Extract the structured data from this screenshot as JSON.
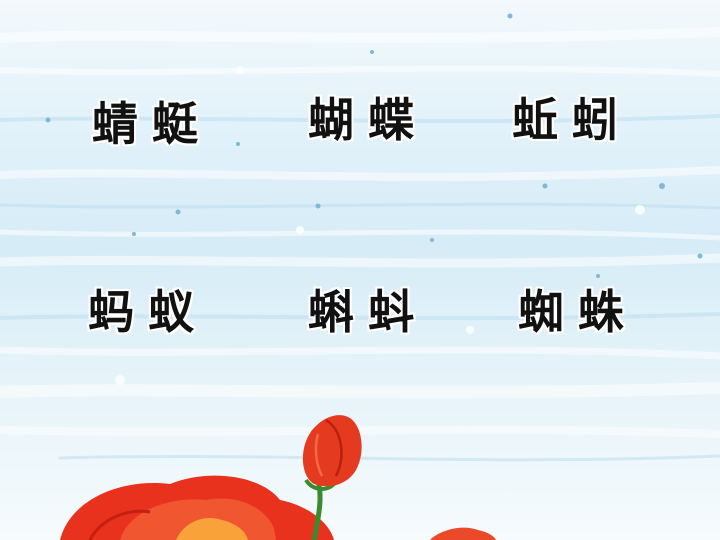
{
  "slide": {
    "words": [
      {
        "first": "蜻",
        "second": "蜓"
      },
      {
        "first": "蝴",
        "second": "蝶"
      },
      {
        "first": "蚯",
        "second": "蚓"
      },
      {
        "first": "蚂",
        "second": "蚁"
      },
      {
        "first": "蝌",
        "second": "蚪"
      },
      {
        "first": "蜘",
        "second": "蛛"
      }
    ]
  },
  "colors": {
    "text": "#111111",
    "background": "#dff0f8",
    "flower_red": "#e8321e",
    "stem_green": "#3c8a2e"
  }
}
